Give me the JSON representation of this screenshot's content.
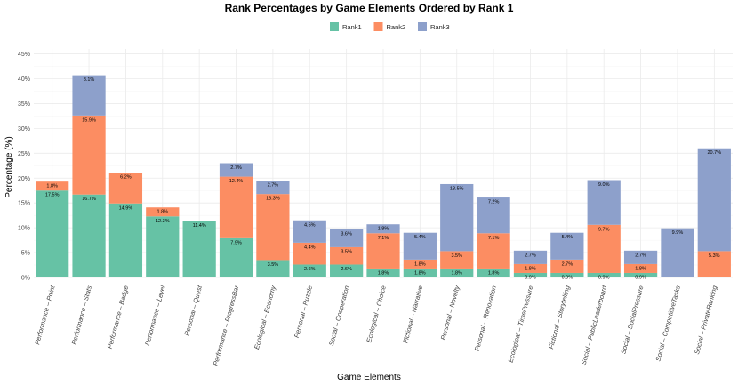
{
  "chart_data": {
    "type": "bar",
    "stacked": true,
    "title": "Rank Percentages by Game Elements Ordered by Rank 1",
    "xlabel": "Game Elements",
    "ylabel": "Percentage (%)",
    "ylim": [
      0,
      46
    ],
    "yticks": [
      "0%",
      "5%",
      "10%",
      "15%",
      "20%",
      "25%",
      "30%",
      "35%",
      "40%",
      "45%"
    ],
    "ytick_values": [
      0,
      5,
      10,
      15,
      20,
      25,
      30,
      35,
      40,
      45
    ],
    "legend_position": "top",
    "categories": [
      "Performance – Point",
      "Performance – Stats",
      "Performance – Badge",
      "Performance – Level",
      "Personal – Quest",
      "Performance – ProgressBar",
      "Ecological – Economy",
      "Personal – Puzzle",
      "Social – Cooperation",
      "Ecological – Choice",
      "Fictional – Narrative",
      "Personal – Novelty",
      "Personal – Renovation",
      "Ecological – TimePressure",
      "Fictional – Storytelling",
      "Social – PublicLeaderboard",
      "Social – SocialPressure",
      "Social – CompetitiveTasks",
      "Social – PrivateRanking"
    ],
    "series": [
      {
        "name": "Rank1",
        "color": "#66c2a5",
        "values": [
          17.5,
          16.7,
          14.9,
          12.3,
          11.4,
          7.9,
          3.5,
          2.6,
          2.6,
          1.8,
          1.8,
          1.8,
          1.8,
          0.9,
          0.9,
          0.9,
          0.9,
          0,
          0
        ],
        "labels": [
          "17.5%",
          "16.7%",
          "14.9%",
          "12.3%",
          "11.4%",
          "7.9%",
          "3.5%",
          "2.6%",
          "2.6%",
          "1.8%",
          "1.8%",
          "1.8%",
          "1.8%",
          "0.9%",
          "0.9%",
          "0.9%",
          "0.9%",
          "",
          ""
        ]
      },
      {
        "name": "Rank2",
        "color": "#fc8d62",
        "values": [
          1.8,
          15.9,
          6.2,
          1.8,
          0,
          12.4,
          13.3,
          4.4,
          3.5,
          7.1,
          1.8,
          3.5,
          7.1,
          1.8,
          2.7,
          9.7,
          1.8,
          0,
          5.3
        ],
        "labels": [
          "1.8%",
          "15.9%",
          "6.2%",
          "1.8%",
          "",
          "12.4%",
          "13.3%",
          "4.4%",
          "3.5%",
          "7.1%",
          "1.8%",
          "3.5%",
          "7.1%",
          "1.8%",
          "2.7%",
          "9.7%",
          "1.8%",
          "",
          "5.3%"
        ]
      },
      {
        "name": "Rank3",
        "color": "#8da0cb",
        "values": [
          0,
          8.1,
          0,
          0,
          0,
          2.7,
          2.7,
          4.5,
          3.6,
          1.8,
          5.4,
          13.5,
          7.2,
          2.7,
          5.4,
          9.0,
          2.7,
          9.9,
          20.7
        ],
        "labels": [
          "",
          "8.1%",
          "",
          "",
          "",
          "2.7%",
          "2.7%",
          "4.5%",
          "3.6%",
          "1.8%",
          "5.4%",
          "13.5%",
          "7.2%",
          "2.7%",
          "5.4%",
          "9.0%",
          "2.7%",
          "9.9%",
          "20.7%"
        ]
      }
    ]
  }
}
